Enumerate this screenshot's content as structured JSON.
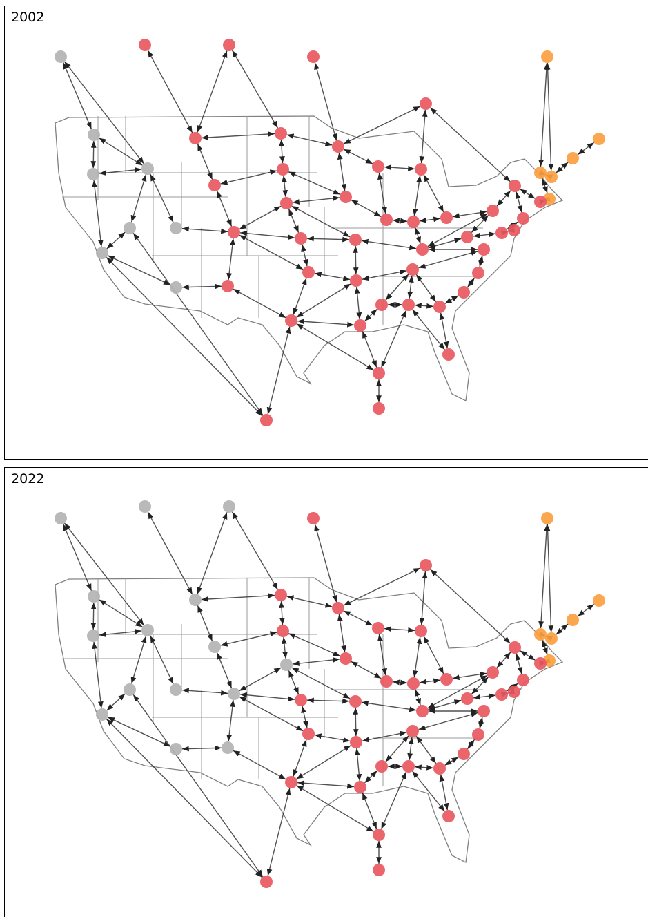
{
  "panels": [
    {
      "title": "2002",
      "node_colors": [
        "#b3b3b3",
        "#e8585f",
        "#e8585f",
        "#e8585f",
        "#fba040",
        "#b3b3b3",
        "#b3b3b3",
        "#b3b3b3",
        "#e8585f",
        "#e8585f",
        "#e8585f",
        "#e8585f",
        "#e8585f",
        "#e8585f",
        "#e8585f",
        "#e8585f",
        "#e8585f",
        "#e8585f",
        "#e8585f",
        "#fba040",
        "#fba040",
        "#fba040",
        "#fba040",
        "#fba040",
        "#e8585f",
        "#b3b3b3",
        "#b3b3b3",
        "#e8585f",
        "#e8585f",
        "#e8585f",
        "#e8585f",
        "#e8585f",
        "#e8585f",
        "#e8585f",
        "#e8585f",
        "#e8585f",
        "#e8585f",
        "#e8585f",
        "#e8585f",
        "#e8585f",
        "#b3b3b3",
        "#b3b3b3",
        "#e8585f",
        "#e8585f",
        "#e8585f",
        "#e8585f",
        "#e8585f",
        "#e8585f",
        "#e8585f",
        "#e8585f",
        "#e8585f",
        "#e8585f",
        "#e8585f",
        "#e8585f",
        "#e8585f",
        "#e8585f",
        "#e8585f"
      ]
    },
    {
      "title": "2022",
      "node_colors": [
        "#b3b3b3",
        "#b3b3b3",
        "#b3b3b3",
        "#e8585f",
        "#fba040",
        "#b3b3b3",
        "#b3b3b3",
        "#b3b3b3",
        "#b3b3b3",
        "#e8585f",
        "#e8585f",
        "#e8585f",
        "#e8585f",
        "#e8585f",
        "#e8585f",
        "#b3b3b3",
        "#b3b3b3",
        "#e8585f",
        "#e8585f",
        "#fba040",
        "#fba040",
        "#fba040",
        "#fba040",
        "#fba040",
        "#e8585f",
        "#b3b3b3",
        "#b3b3b3",
        "#b3b3b3",
        "#e8585f",
        "#e8585f",
        "#e8585f",
        "#e8585f",
        "#e8585f",
        "#e8585f",
        "#e8585f",
        "#e8585f",
        "#e8585f",
        "#e8585f",
        "#e8585f",
        "#e8585f",
        "#b3b3b3",
        "#b3b3b3",
        "#b3b3b3",
        "#e8585f",
        "#e8585f",
        "#e8585f",
        "#e8585f",
        "#e8585f",
        "#e8585f",
        "#e8585f",
        "#e8585f",
        "#e8585f",
        "#e8585f",
        "#e8585f",
        "#e8585f",
        "#e8585f",
        "#e8585f"
      ]
    }
  ]
}
